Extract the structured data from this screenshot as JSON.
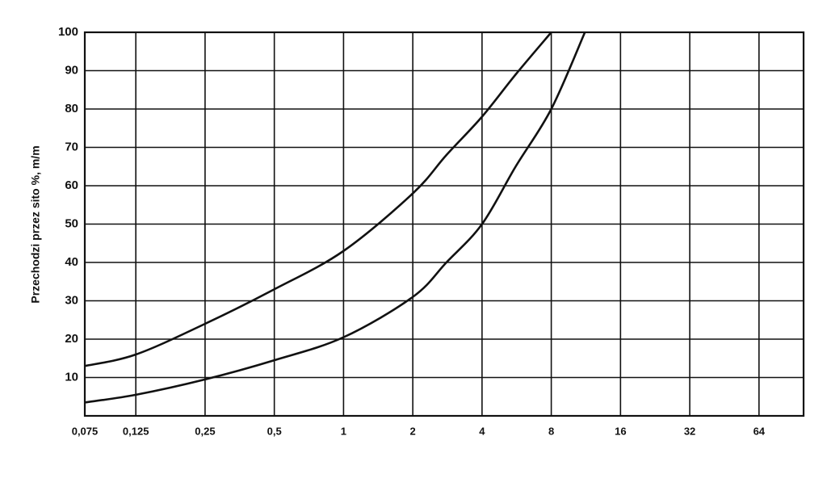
{
  "chart_data": {
    "type": "line",
    "ylabel": "Przechodzi przez sito %, m/m",
    "xscale": "log",
    "xlim": [
      0.075,
      100
    ],
    "ylim": [
      0,
      100
    ],
    "xticks": [
      {
        "value": 0.075,
        "label": "0,075"
      },
      {
        "value": 0.125,
        "label": "0,125"
      },
      {
        "value": 0.25,
        "label": "0,25"
      },
      {
        "value": 0.5,
        "label": "0,5"
      },
      1,
      2,
      4,
      8,
      16,
      32,
      64
    ],
    "yticks": [
      10,
      20,
      30,
      40,
      50,
      60,
      70,
      80,
      90,
      100
    ],
    "grid": true,
    "series": [
      {
        "color": "#111111",
        "x": [
          0.075,
          0.125,
          0.25,
          0.5,
          1,
          2,
          2.8,
          4,
          5.6,
          8
        ],
        "values": [
          13,
          16,
          24,
          33,
          43,
          58,
          68,
          78,
          89,
          100
        ]
      },
      {
        "color": "#111111",
        "x": [
          0.075,
          0.125,
          0.25,
          0.5,
          1,
          2,
          2.8,
          4,
          5.6,
          8,
          11.2
        ],
        "values": [
          3.5,
          5.5,
          9.5,
          14.5,
          20.5,
          31,
          40,
          50,
          65,
          80,
          100
        ]
      }
    ]
  }
}
